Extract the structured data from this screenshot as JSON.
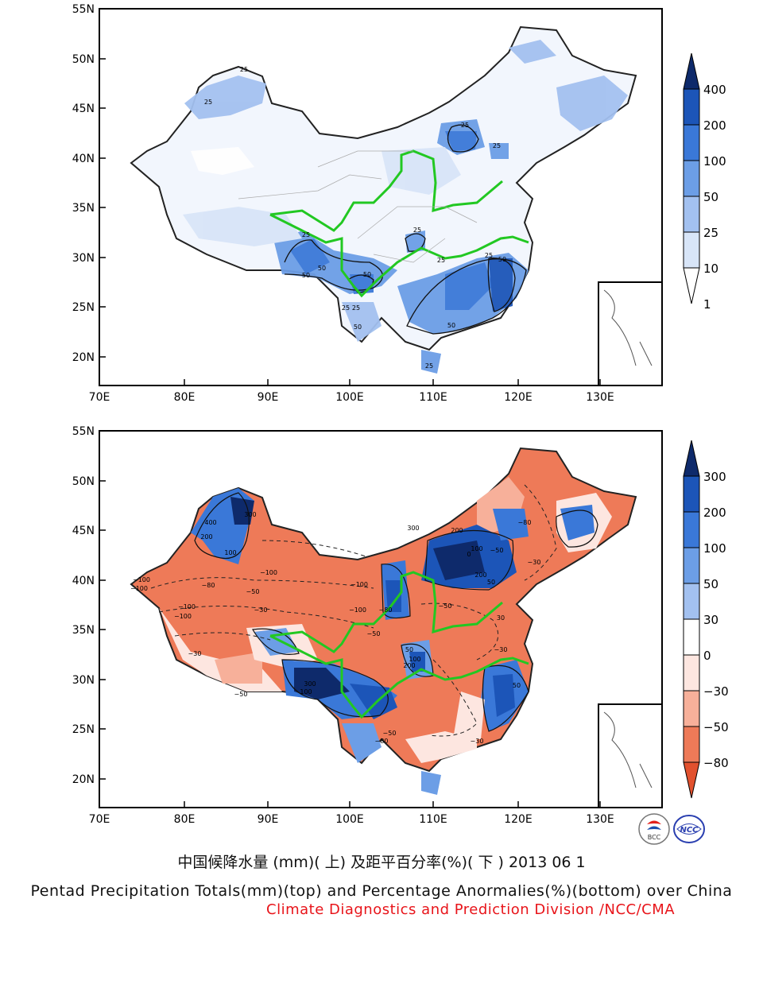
{
  "top_map": {
    "panel": "precipitation-totals",
    "x_ticks": [
      "70E",
      "80E",
      "90E",
      "100E",
      "110E",
      "120E",
      "130E"
    ],
    "y_ticks": [
      "55N",
      "50N",
      "45N",
      "40N",
      "35N",
      "30N",
      "25N",
      "20N"
    ],
    "colorbar": {
      "labels": [
        "400",
        "200",
        "100",
        "50",
        "25",
        "10",
        "1"
      ],
      "colors": [
        "#0e2a6b",
        "#1c55b8",
        "#3a78d8",
        "#6c9ee6",
        "#a3c1f0",
        "#d8e5f8",
        "#ffffff"
      ]
    },
    "contour_labels": [
      "25",
      "25",
      "25",
      "25",
      "25",
      "25",
      "25",
      "50",
      "50",
      "50",
      "50",
      "25",
      "50",
      "25",
      "25",
      "50",
      "25"
    ]
  },
  "bottom_map": {
    "panel": "percentage-anomalies",
    "x_ticks": [
      "70E",
      "80E",
      "90E",
      "100E",
      "110E",
      "120E",
      "130E"
    ],
    "y_ticks": [
      "55N",
      "50N",
      "45N",
      "40N",
      "35N",
      "30N",
      "25N",
      "20N"
    ],
    "colorbar": {
      "labels": [
        "300",
        "200",
        "100",
        "50",
        "30",
        "0",
        "−30",
        "−50",
        "−80"
      ],
      "colors": [
        "#0e2a6b",
        "#1c55b8",
        "#3a78d8",
        "#6c9ee6",
        "#a3c1f0",
        "#ffffff",
        "#fde6e0",
        "#f7b09a",
        "#ee7a58",
        "#e2512e"
      ]
    },
    "contour_labels": [
      "−100",
      "−100",
      "−100",
      "−100",
      "−100",
      "−100",
      "−80",
      "−50",
      "−30",
      "−30",
      "−50",
      "100",
      "200",
      "300",
      "400",
      "300",
      "200",
      "100",
      "200",
      "50",
      "0",
      "−50",
      "−80",
      "−30",
      "−50",
      "50",
      "100",
      "200",
      "300",
      "100",
      "−100",
      "−80",
      "−50",
      "−30",
      "30",
      "50",
      "−30",
      "−50",
      "−80"
    ]
  },
  "captions": {
    "cn": "中国候降水量 (mm)( 上) 及距平百分率(%)( 下 ) 2013 06 1",
    "en": "Pentad Precipitation Totals(mm)(top) and Percentage Anormalies(%)(bottom) over China",
    "credit": "Climate Diagnostics and Prediction Division /NCC/CMA"
  },
  "logos": {
    "bcc": "BCC",
    "ncc": "NCC"
  }
}
